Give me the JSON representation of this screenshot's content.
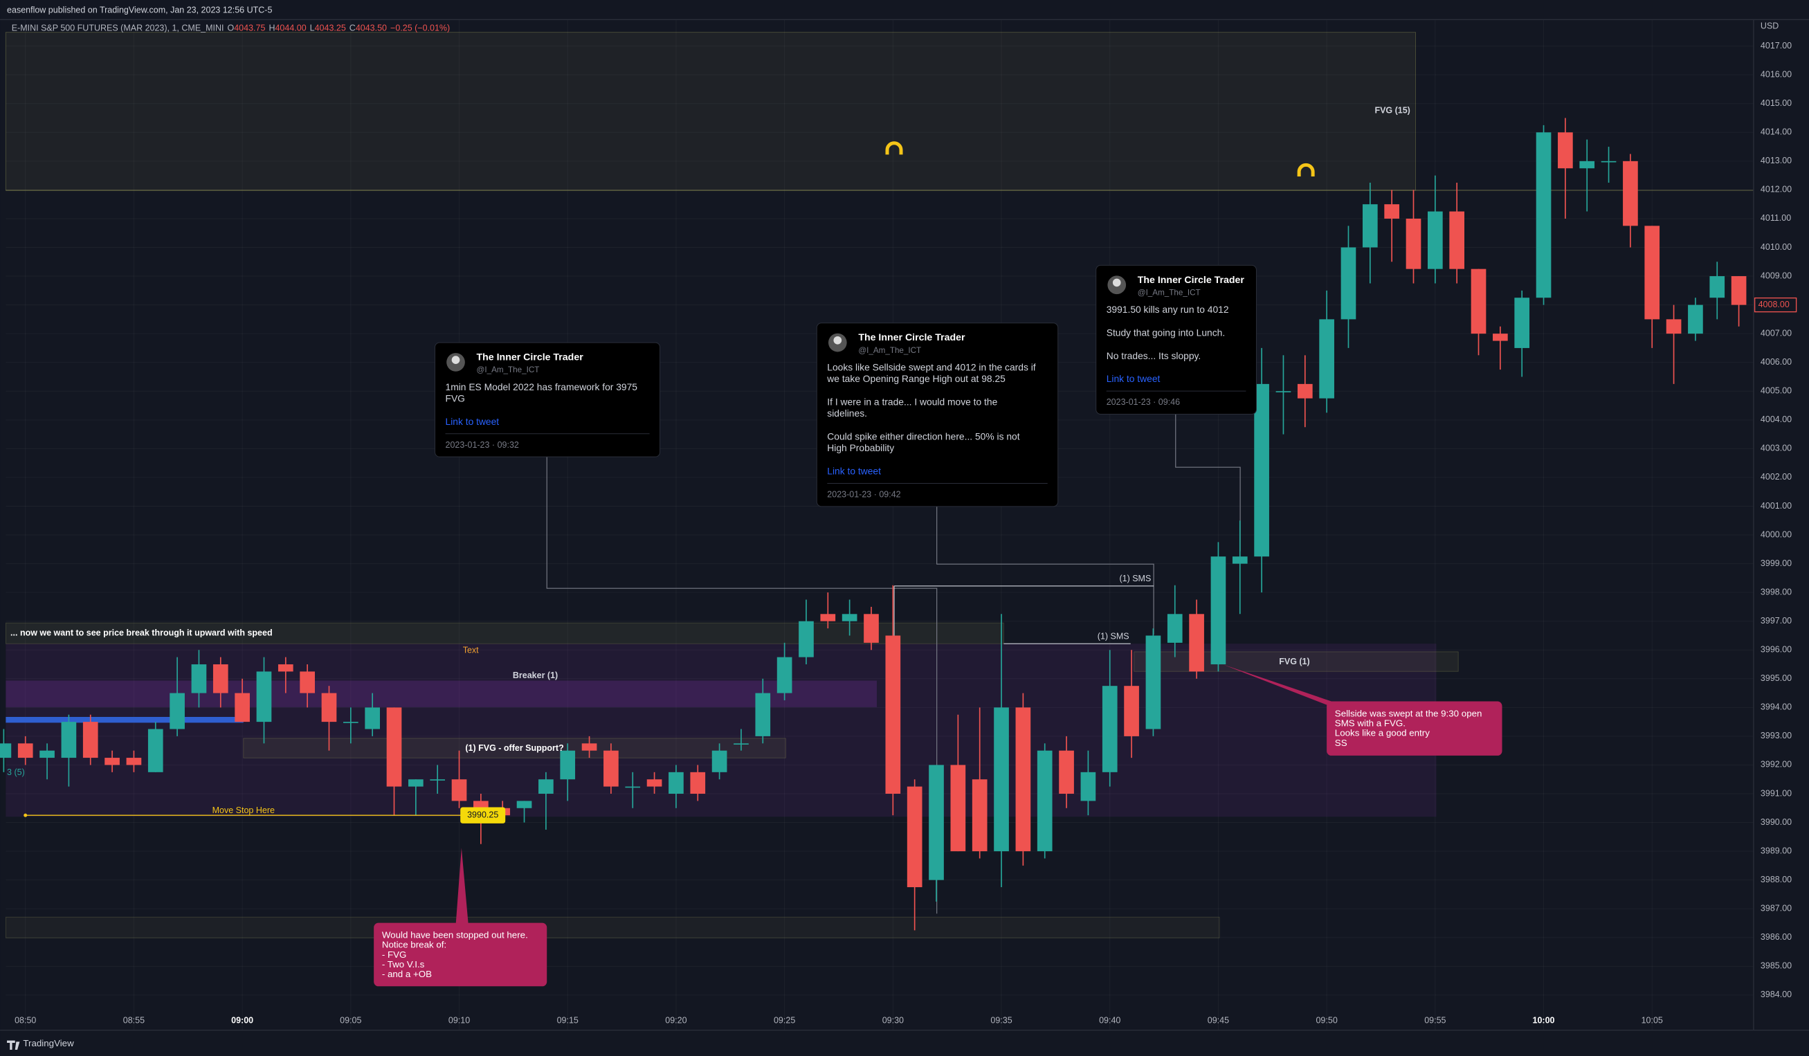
{
  "header": {
    "publisher": "easenflow published on TradingView.com, Jan 23, 2023 12:56 UTC-5",
    "currency": "USD"
  },
  "footer": {
    "brand": "TradingView"
  },
  "chart_data": {
    "type": "candlestick",
    "title": "E-MINI S&P 500 FUTURES (MAR 2023), 1, CME_MINI",
    "legend": [
      "O",
      "4043.75",
      "H",
      "4044.00",
      "L",
      "4043.25",
      "C",
      "4043.50",
      "−0.25 (−0.01%)"
    ],
    "up_color": "#26a69a",
    "down_color": "#ef5350",
    "grid": true,
    "categories": [
      null,
      "08:50",
      null,
      null,
      null,
      null,
      "08:55",
      null,
      null,
      null,
      null,
      "09:00",
      null,
      null,
      null,
      null,
      "09:05",
      null,
      null,
      null,
      null,
      "09:10",
      null,
      null,
      null,
      null,
      "09:15",
      null,
      null,
      null,
      null,
      "09:20",
      null,
      null,
      null,
      null,
      "09:25",
      null,
      null,
      null,
      null,
      "09:30",
      null,
      null,
      null,
      null,
      "09:35",
      null,
      null,
      null,
      null,
      "09:40",
      null,
      null,
      null,
      null,
      "09:45",
      null,
      null,
      null,
      null,
      "09:50",
      null,
      null,
      null,
      null,
      "09:55",
      null,
      null,
      null,
      null,
      "10:00",
      null,
      null,
      null,
      null,
      "10:05",
      null,
      null,
      null,
      null
    ],
    "open": [
      3992.25,
      3992.75,
      3992.25,
      3992.25,
      3993.5,
      3992.25,
      3992.25,
      3991.75,
      3993.25,
      3994.5,
      3995.5,
      3994.5,
      3993.5,
      3995.5,
      3995.25,
      3994.5,
      3993.5,
      3993.25,
      3994,
      3991.25,
      3991.5,
      3991.5,
      3990.75,
      3990.5,
      3990.5,
      3991,
      3991.5,
      3992.75,
      3992.5,
      3991.25,
      3991.5,
      3991,
      3991.75,
      3991.75,
      3992.75,
      3993,
      3994.5,
      3995.75,
      3997.25,
      3997,
      3997.25,
      3996.5,
      3991.25,
      3988,
      3992,
      3991.5,
      3989,
      3994,
      3989,
      3992.5,
      3990.75,
      3991.75,
      3994.75,
      3993.25,
      3996.25,
      3997.25,
      3995.5,
      3999,
      3999.25,
      4005,
      4005.25,
      4004.75,
      4007.5,
      4010,
      4011.5,
      4011,
      4009.25,
      4011.25,
      4009.25,
      4007,
      4006.5,
      4008.25,
      4014,
      4012.75,
      4013,
      4013,
      4010.75,
      4007.5,
      4007,
      4008.25,
      4009
    ],
    "high": [
      3993.25,
      3993,
      3992.75,
      3993.75,
      3993.75,
      3992.5,
      3992.5,
      3993.5,
      3995.75,
      3996,
      3995.75,
      3995,
      3995.75,
      3995.75,
      3995.5,
      3994.75,
      3994,
      3994.5,
      3994,
      3991.5,
      3992,
      3992.5,
      3991,
      3990.75,
      3990.75,
      3991.75,
      3992.75,
      3993,
      3992.75,
      3991.75,
      3991.75,
      3992,
      3992,
      3992.75,
      3993.25,
      3995,
      3996.25,
      3997.75,
      3998,
      3997.75,
      3997.5,
      3998.25,
      3991.5,
      3992,
      3993.75,
      3994,
      3997.25,
      3994.5,
      3992.75,
      3993,
      3992.5,
      3996,
      3996,
      3996.75,
      3998.25,
      3997.75,
      3999.75,
      4000.5,
      4006.5,
      4006.25,
      4006.25,
      4008.5,
      4010.75,
      4012.25,
      4012,
      4012,
      4012.5,
      4012.25,
      4009.25,
      4007.25,
      4008.5,
      4014.25,
      4014.5,
      4013.75,
      4013.5,
      4013.25,
      4010.75,
      4008,
      4008.25,
      4009.5,
      4009
    ],
    "low": [
      3991.75,
      3992,
      3991.5,
      3991.25,
      3992,
      3991.75,
      3991.75,
      3991.75,
      3993,
      3994,
      3994,
      3993.5,
      3992.75,
      3994.5,
      3994,
      3992.5,
      3992.75,
      3993,
      3990.25,
      3990.25,
      3991,
      3990.5,
      3989.25,
      3990,
      3990,
      3989.75,
      3990.75,
      3992.25,
      3991,
      3990.5,
      3991,
      3990.5,
      3990.75,
      3991.5,
      3992.5,
      3992.75,
      3994.25,
      3995.5,
      3996.75,
      3996.5,
      3996,
      3990.25,
      3986.25,
      3987.25,
      3989,
      3988.75,
      3987.75,
      3988.5,
      3988.75,
      3990.5,
      3990.25,
      3991.25,
      3992.25,
      3993,
      3995.75,
      3995,
      3995.25,
      3997.25,
      3998,
      4003.5,
      4003.75,
      4004.25,
      4006.5,
      4008.75,
      4009.5,
      4008.75,
      4008.75,
      4008.75,
      4006.25,
      4005.75,
      4005.5,
      4008,
      4011,
      4011.25,
      4012.25,
      4010,
      4006.5,
      4005.25,
      4006.75,
      4007.5,
      4007.25
    ],
    "close": [
      3992.75,
      3992.25,
      3992.5,
      3993.5,
      3992.25,
      3992,
      3992,
      3993.25,
      3994.5,
      3995.5,
      3994.5,
      3993.5,
      3995.25,
      3995.25,
      3994.5,
      3993.5,
      3993.5,
      3994,
      3991.25,
      3991.5,
      3991.5,
      3990.75,
      3990.25,
      3990.25,
      3990.75,
      3991.5,
      3992.5,
      3992.5,
      3991.25,
      3991.25,
      3991.25,
      3991.75,
      3991,
      3992.5,
      3992.75,
      3994.5,
      3995.75,
      3997,
      3997,
      3997.25,
      3996.25,
      3991,
      3987.75,
      3992,
      3989,
      3989,
      3994,
      3989,
      3992.5,
      3991,
      3991.75,
      3994.75,
      3993,
      3996.5,
      3997.25,
      3995.25,
      3999.25,
      3999.25,
      4005.25,
      4005,
      4004.75,
      4007.5,
      4010,
      4011.5,
      4011,
      4009.25,
      4011.25,
      4009.25,
      4007,
      4006.75,
      4008.25,
      4014,
      4012.75,
      4013,
      4013,
      4010.75,
      4007.5,
      4007,
      4008,
      4009,
      4008
    ],
    "ylim": [
      3983.5,
      4017.4
    ],
    "yticks": [
      {
        "value": 3984,
        "label": "3984.00"
      },
      {
        "value": 3985,
        "label": "3985.00"
      },
      {
        "value": 3986,
        "label": "3986.00"
      },
      {
        "value": 3987,
        "label": "3987.00"
      },
      {
        "value": 3988,
        "label": "3988.00"
      },
      {
        "value": 3989,
        "label": "3989.00"
      },
      {
        "value": 3990,
        "label": "3990.00"
      },
      {
        "value": 3991,
        "label": "3991.00"
      },
      {
        "value": 3992,
        "label": "3992.00"
      },
      {
        "value": 3993,
        "label": "3993.00"
      },
      {
        "value": 3994,
        "label": "3994.00"
      },
      {
        "value": 3995,
        "label": "3995.00"
      },
      {
        "value": 3996,
        "label": "3996.00"
      },
      {
        "value": 3997,
        "label": "3997.00"
      },
      {
        "value": 3998,
        "label": "3998.00"
      },
      {
        "value": 3999,
        "label": "3999.00"
      },
      {
        "value": 4000,
        "label": "4000.00"
      },
      {
        "value": 4001,
        "label": "4001.00"
      },
      {
        "value": 4002,
        "label": "4002.00"
      },
      {
        "value": 4003,
        "label": "4003.00"
      },
      {
        "value": 4004,
        "label": "4004.00"
      },
      {
        "value": 4005,
        "label": "4005.00"
      },
      {
        "value": 4006,
        "label": "4006.00"
      },
      {
        "value": 4007,
        "label": "4007.00"
      },
      {
        "value": 4008,
        "label": "4008.00"
      },
      {
        "value": 4009,
        "label": "4009.00"
      },
      {
        "value": 4010,
        "label": "4010.00"
      },
      {
        "value": 4011,
        "label": "4011.00"
      },
      {
        "value": 4012,
        "label": "4012.00"
      },
      {
        "value": 4013,
        "label": "4013.00"
      },
      {
        "value": 4014,
        "label": "4014.00"
      },
      {
        "value": 4015,
        "label": "4015.00"
      },
      {
        "value": 4016,
        "label": "4016.00"
      },
      {
        "value": 4017,
        "label": "4017.00"
      }
    ],
    "last_price": {
      "value": 4008,
      "label": "4008.00"
    },
    "stop_price": {
      "value": 3990.25,
      "label": "3990.25"
    },
    "annotations": [
      "FVG (15)",
      "... now we want to see price break through it upward with speed",
      "Text",
      "Breaker (1)",
      "(1) FVG - offer Support?",
      "Move Stop Here",
      "(1) SMS",
      "(1) SMS",
      "FVG (1)",
      "3 (5)"
    ],
    "callouts": [
      [
        "Would have been stopped out here.",
        "Notice break of:",
        "- FVG",
        "- Two V.I.s",
        "- and a +OB"
      ],
      [
        "Sellside was swept at the 9:30 open",
        "SMS with a FVG.",
        "Looks like a good entry",
        "SS"
      ]
    ],
    "tweets": [
      {
        "name": "The Inner Circle Trader",
        "handle": "@I_Am_The_ICT",
        "paragraphs": [
          [
            "1min ES Model 2022 has framework for 3975",
            "FVG"
          ]
        ],
        "link": "Link to tweet",
        "date": "2023-01-23 · 09:32"
      },
      {
        "name": "The Inner Circle Trader",
        "handle": "@I_Am_The_ICT",
        "paragraphs": [
          [
            "Looks like Sellside swept and 4012 in the cards if",
            "we take Opening Range High out at 98.25"
          ],
          [
            "If I were in a trade... I would move to the",
            "sidelines."
          ],
          [
            "Could spike either direction here... 50% is not",
            "High Probability"
          ]
        ],
        "link": "Link to tweet",
        "date": "2023-01-23 · 09:42"
      },
      {
        "name": "The Inner Circle Trader",
        "handle": "@I_Am_The_ICT",
        "paragraphs": [
          [
            "3991.50 kills any run to 4012"
          ],
          [
            "Study that going into Lunch."
          ],
          [
            "No trades... Its sloppy."
          ]
        ],
        "link": "Link to tweet",
        "date": "2023-01-23 · 09:46"
      }
    ]
  }
}
